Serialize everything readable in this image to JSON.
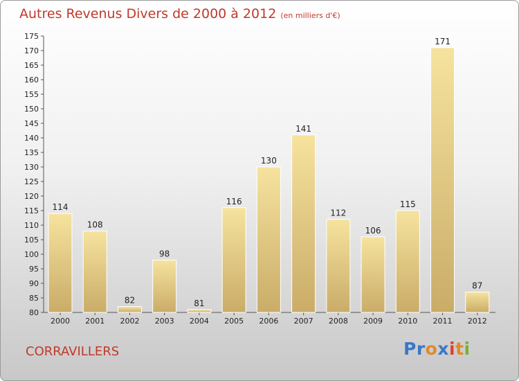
{
  "header": {
    "title": "Autres Revenus Divers de 2000 à 2012",
    "unit": "(en milliers d'€)"
  },
  "footer": {
    "commune": "CORRAVILLERS",
    "logo": "Proxiti"
  },
  "colors": {
    "title": "#c0392b",
    "bar_light": "#f6e39e",
    "bar_dark": "#c9ac68",
    "logo_letters": [
      "#3a78c8",
      "#3a78c8",
      "#e08a2a",
      "#3a78c8",
      "#e0402a",
      "#e08a2a",
      "#7ab030"
    ]
  },
  "chart_data": {
    "type": "bar",
    "categories": [
      "2000",
      "2001",
      "2002",
      "2003",
      "2004",
      "2005",
      "2006",
      "2007",
      "2008",
      "2009",
      "2010",
      "2011",
      "2012"
    ],
    "values": [
      114,
      108,
      82,
      98,
      81,
      116,
      130,
      141,
      112,
      106,
      115,
      171,
      87
    ],
    "title": "Autres Revenus Divers de 2000 à 2012",
    "xlabel": "",
    "ylabel": "",
    "ylim": [
      80,
      175
    ],
    "yticks": [
      80,
      85,
      90,
      95,
      100,
      105,
      110,
      115,
      120,
      125,
      130,
      135,
      140,
      145,
      150,
      155,
      160,
      165,
      170,
      175
    ],
    "grid": false,
    "legend": "none"
  }
}
